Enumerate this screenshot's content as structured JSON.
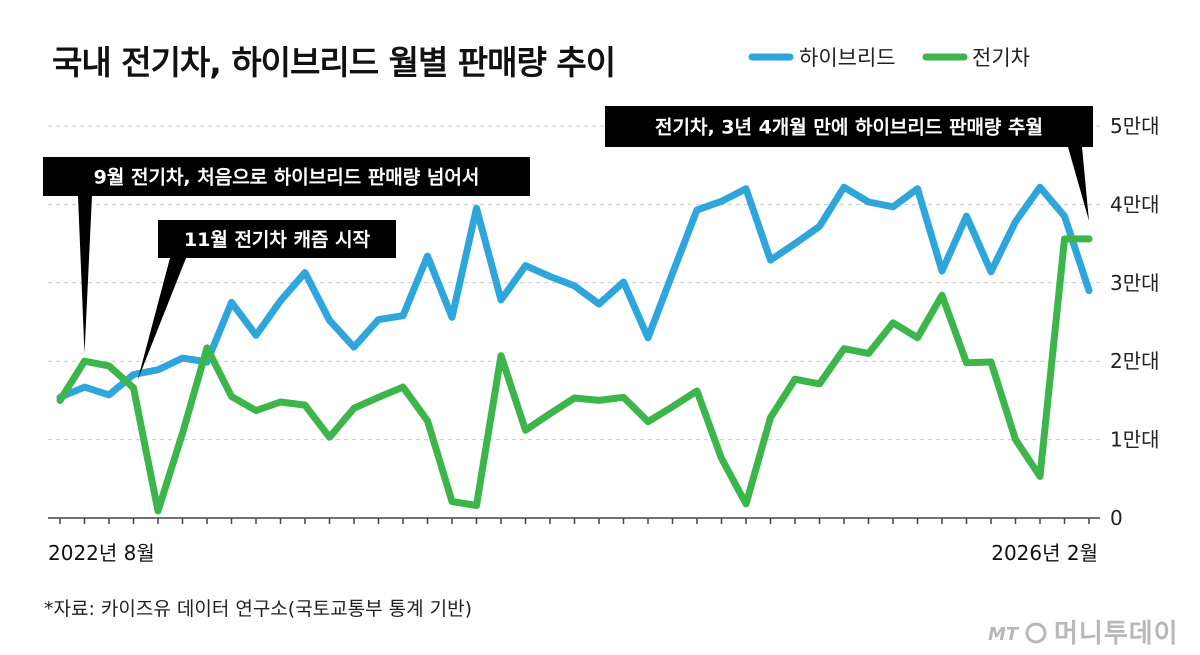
{
  "title": "국내 전기차, 하이브리드 월별 판매량 추이",
  "legend": [
    {
      "name": "하이브리드",
      "color": "#2ea6dc"
    },
    {
      "name": "전기차",
      "color": "#3cb54a"
    }
  ],
  "annotations": [
    {
      "text": "9월 전기차, 처음으로 하이브리드 판매량 넘어서",
      "index": 1
    },
    {
      "text": "11월 전기차 캐즘 시작",
      "index": 3
    },
    {
      "text": "전기차, 3년 4개월 만에 하이브리드 판매량 추월",
      "index": 42
    }
  ],
  "x_start_label": "2022년 8월",
  "x_end_label": "2026년 2월",
  "source": "*자료: 카이즈유 데이터 연구소(국토교통부 통계 기반)",
  "brand": {
    "mt": "MT",
    "name": "머니투데이"
  },
  "chart_data": {
    "type": "line",
    "title": "국내 전기차, 하이브리드 월별 판매량 추이",
    "x_start": "2022년 8월",
    "x_end": "2026년 2월",
    "ylim": [
      0,
      50000
    ],
    "yticks": [
      {
        "value": 0,
        "label": "0"
      },
      {
        "value": 10000,
        "label": "1만대"
      },
      {
        "value": 20000,
        "label": "2만대"
      },
      {
        "value": 30000,
        "label": "3만대"
      },
      {
        "value": 40000,
        "label": "4만대"
      },
      {
        "value": 50000,
        "label": "5만대"
      }
    ],
    "series": [
      {
        "name": "하이브리드",
        "color": "#2ea6dc",
        "values": [
          15400,
          16700,
          15700,
          18300,
          18900,
          20400,
          19900,
          27500,
          23300,
          27700,
          31300,
          25200,
          21800,
          25300,
          25800,
          33400,
          25600,
          39500,
          27800,
          32200,
          30800,
          29600,
          27300,
          30100,
          23000,
          31200,
          39300,
          40400,
          42000,
          32900,
          35000,
          37200,
          42200,
          40300,
          39700,
          42000,
          31500,
          38500,
          31400,
          37800,
          42200,
          38500,
          29000
        ]
      },
      {
        "name": "전기차",
        "color": "#3cb54a",
        "values": [
          15000,
          20000,
          19400,
          16600,
          900,
          10800,
          21700,
          15500,
          13700,
          14800,
          14400,
          10300,
          14000,
          15400,
          16700,
          12400,
          2100,
          1600,
          20700,
          11200,
          13300,
          15300,
          15000,
          15400,
          12300,
          14200,
          16200,
          7600,
          1800,
          12800,
          17700,
          17100,
          21600,
          21000,
          24900,
          23000,
          28400,
          19800,
          19900,
          10000,
          5300,
          35600,
          35600
        ]
      }
    ]
  }
}
